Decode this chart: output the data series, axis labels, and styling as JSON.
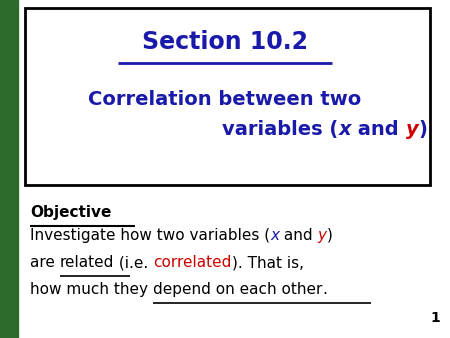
{
  "bg_color": "#ffffff",
  "left_bar_color": "#2d6b2d",
  "border_color": "#000000",
  "dark_blue": "#1a1aaa",
  "red": "#cc0000",
  "section_title": "Section 10.2",
  "sub_line1": "Correlation between two",
  "sub_line2_parts": [
    [
      "variables (",
      "dark_blue",
      false
    ],
    [
      "x",
      "dark_blue",
      true
    ],
    [
      " and ",
      "dark_blue",
      false
    ],
    [
      "y",
      "red",
      true
    ],
    [
      ")",
      "dark_blue",
      false
    ]
  ],
  "objective_label": "Objective",
  "body_line1_parts": [
    [
      "Investigate how two variables (",
      "black",
      false
    ],
    [
      "x",
      "dark_blue",
      true
    ],
    [
      " and ",
      "black",
      false
    ],
    [
      "y",
      "red",
      true
    ],
    [
      ")",
      "black",
      false
    ]
  ],
  "body_line2_parts": [
    [
      "are ",
      "black",
      false,
      false
    ],
    [
      "related",
      "black",
      false,
      true
    ],
    [
      " (i.e. ",
      "black",
      false,
      false
    ],
    [
      "correlated",
      "red",
      false,
      false
    ],
    [
      "). That is,",
      "black",
      false,
      false
    ]
  ],
  "body_line3_parts": [
    [
      "how much they ",
      "black",
      false,
      false
    ],
    [
      "depend on each other",
      "black",
      false,
      true
    ],
    [
      ".",
      "black",
      false,
      false
    ]
  ],
  "page_number": "1",
  "title_fontsize": 17,
  "subtitle_fontsize": 14,
  "body_fontsize": 11,
  "obj_fontsize": 11
}
